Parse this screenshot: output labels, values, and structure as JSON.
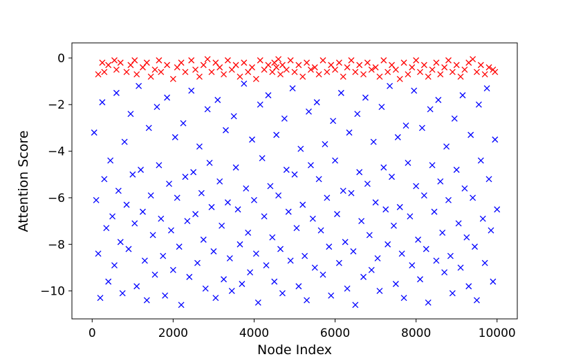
{
  "chart_data": {
    "type": "scatter",
    "marker": "x",
    "xlabel": "Node Index",
    "ylabel": "Attention Score",
    "xlim": [
      -500,
      10500
    ],
    "ylim": [
      -11.2,
      0.65
    ],
    "xticks": [
      0,
      2000,
      4000,
      6000,
      8000,
      10000
    ],
    "xtick_labels": [
      "0",
      "2000",
      "4000",
      "6000",
      "8000",
      "10000"
    ],
    "yticks": [
      0,
      -2,
      -4,
      -6,
      -8,
      -10
    ],
    "ytick_labels": [
      "0",
      "−2",
      "−4",
      "−6",
      "−8",
      "−10"
    ],
    "grid": false,
    "legend": "none",
    "series": [
      {
        "color": "#ff0000",
        "description_range": {
          "x": [
            0,
            10000
          ],
          "y": [
            -1.0,
            0.0
          ]
        },
        "points": [
          [
            150,
            -0.7
          ],
          [
            250,
            -0.2
          ],
          [
            300,
            -0.6
          ],
          [
            400,
            -0.3
          ],
          [
            550,
            -0.1
          ],
          [
            600,
            -0.5
          ],
          [
            700,
            -0.2
          ],
          [
            850,
            -0.6
          ],
          [
            950,
            -0.3
          ],
          [
            1050,
            -0.1
          ],
          [
            1100,
            -0.7
          ],
          [
            1250,
            -0.4
          ],
          [
            1350,
            -0.2
          ],
          [
            1450,
            -0.8
          ],
          [
            1550,
            -0.5
          ],
          [
            1650,
            -0.1
          ],
          [
            1700,
            -0.6
          ],
          [
            1850,
            -0.3
          ],
          [
            2000,
            -0.9
          ],
          [
            2100,
            -0.4
          ],
          [
            2200,
            -0.2
          ],
          [
            2300,
            -0.6
          ],
          [
            2450,
            -0.1
          ],
          [
            2550,
            -0.5
          ],
          [
            2650,
            -0.8
          ],
          [
            2750,
            -0.3
          ],
          [
            2850,
            -0.05
          ],
          [
            2950,
            -0.6
          ],
          [
            3050,
            -0.2
          ],
          [
            3150,
            -0.4
          ],
          [
            3250,
            -0.7
          ],
          [
            3350,
            -0.1
          ],
          [
            3450,
            -0.5
          ],
          [
            3550,
            -0.3
          ],
          [
            3650,
            -0.8
          ],
          [
            3750,
            -0.2
          ],
          [
            3850,
            -0.6
          ],
          [
            3950,
            -0.4
          ],
          [
            4050,
            -0.9
          ],
          [
            4150,
            -0.1
          ],
          [
            4250,
            -0.5
          ],
          [
            4350,
            -0.3
          ],
          [
            4450,
            -0.6
          ],
          [
            4500,
            -0.2
          ],
          [
            4550,
            -0.4
          ],
          [
            4600,
            -0.05
          ],
          [
            4650,
            -0.7
          ],
          [
            4700,
            -0.3
          ],
          [
            4800,
            -0.5
          ],
          [
            4900,
            -0.1
          ],
          [
            5000,
            -0.6
          ],
          [
            5100,
            -0.3
          ],
          [
            5200,
            -0.8
          ],
          [
            5300,
            -0.2
          ],
          [
            5400,
            -0.5
          ],
          [
            5500,
            -0.4
          ],
          [
            5600,
            -0.7
          ],
          [
            5700,
            -0.1
          ],
          [
            5800,
            -0.6
          ],
          [
            5900,
            -0.3
          ],
          [
            6000,
            -0.5
          ],
          [
            6100,
            -0.2
          ],
          [
            6200,
            -0.8
          ],
          [
            6300,
            -0.4
          ],
          [
            6400,
            -0.1
          ],
          [
            6500,
            -0.6
          ],
          [
            6600,
            -0.3
          ],
          [
            6700,
            -0.7
          ],
          [
            6800,
            -0.2
          ],
          [
            6900,
            -0.5
          ],
          [
            7000,
            -0.4
          ],
          [
            7100,
            -0.8
          ],
          [
            7200,
            -0.1
          ],
          [
            7300,
            -0.6
          ],
          [
            7400,
            -0.3
          ],
          [
            7500,
            -0.5
          ],
          [
            7600,
            -0.9
          ],
          [
            7700,
            -0.2
          ],
          [
            7800,
            -0.7
          ],
          [
            7900,
            -0.4
          ],
          [
            8000,
            -0.1
          ],
          [
            8100,
            -0.6
          ],
          [
            8200,
            -0.3
          ],
          [
            8300,
            -0.8
          ],
          [
            8400,
            -0.5
          ],
          [
            8500,
            -0.2
          ],
          [
            8600,
            -0.7
          ],
          [
            8700,
            -0.4
          ],
          [
            8800,
            -0.1
          ],
          [
            8900,
            -0.6
          ],
          [
            9000,
            -0.3
          ],
          [
            9100,
            -0.8
          ],
          [
            9200,
            -0.5
          ],
          [
            9300,
            -0.2
          ],
          [
            9400,
            -0.05
          ],
          [
            9500,
            -0.6
          ],
          [
            9600,
            -0.3
          ],
          [
            9700,
            -0.7
          ],
          [
            9800,
            -0.4
          ],
          [
            9900,
            -0.5
          ],
          [
            9950,
            -0.6
          ]
        ]
      },
      {
        "color": "#0000ff",
        "description_range": {
          "x": [
            0,
            10000
          ],
          "y": [
            -10.7,
            -1.0
          ]
        },
        "points": [
          [
            50,
            -3.2
          ],
          [
            100,
            -6.1
          ],
          [
            150,
            -8.4
          ],
          [
            200,
            -10.3
          ],
          [
            250,
            -1.9
          ],
          [
            300,
            -5.2
          ],
          [
            350,
            -7.3
          ],
          [
            400,
            -9.6
          ],
          [
            450,
            -4.4
          ],
          [
            500,
            -6.8
          ],
          [
            550,
            -8.9
          ],
          [
            600,
            -1.5
          ],
          [
            650,
            -5.7
          ],
          [
            700,
            -7.9
          ],
          [
            750,
            -10.1
          ],
          [
            800,
            -3.6
          ],
          [
            850,
            -6.3
          ],
          [
            900,
            -8.2
          ],
          [
            950,
            -2.4
          ],
          [
            1000,
            -5.0
          ],
          [
            1050,
            -7.1
          ],
          [
            1100,
            -9.8
          ],
          [
            1150,
            -1.2
          ],
          [
            1200,
            -4.8
          ],
          [
            1250,
            -6.6
          ],
          [
            1300,
            -8.7
          ],
          [
            1350,
            -10.4
          ],
          [
            1400,
            -3.0
          ],
          [
            1450,
            -5.9
          ],
          [
            1500,
            -7.6
          ],
          [
            1550,
            -9.3
          ],
          [
            1600,
            -2.1
          ],
          [
            1650,
            -4.6
          ],
          [
            1700,
            -6.9
          ],
          [
            1750,
            -8.5
          ],
          [
            1800,
            -10.2
          ],
          [
            1850,
            -1.7
          ],
          [
            1900,
            -5.4
          ],
          [
            1950,
            -7.4
          ],
          [
            2000,
            -9.1
          ],
          [
            2050,
            -3.4
          ],
          [
            2100,
            -6.0
          ],
          [
            2150,
            -8.1
          ],
          [
            2200,
            -10.6
          ],
          [
            2250,
            -2.8
          ],
          [
            2300,
            -5.1
          ],
          [
            2350,
            -7.0
          ],
          [
            2400,
            -9.4
          ],
          [
            2450,
            -1.4
          ],
          [
            2500,
            -4.9
          ],
          [
            2550,
            -6.7
          ],
          [
            2600,
            -8.8
          ],
          [
            2650,
            -3.8
          ],
          [
            2700,
            -5.8
          ],
          [
            2750,
            -7.8
          ],
          [
            2800,
            -9.9
          ],
          [
            2850,
            -2.2
          ],
          [
            2900,
            -4.5
          ],
          [
            2950,
            -6.4
          ],
          [
            3000,
            -8.3
          ],
          [
            3050,
            -10.3
          ],
          [
            3100,
            -1.8
          ],
          [
            3150,
            -5.3
          ],
          [
            3200,
            -7.2
          ],
          [
            3250,
            -9.5
          ],
          [
            3300,
            -3.1
          ],
          [
            3350,
            -6.2
          ],
          [
            3400,
            -8.6
          ],
          [
            3450,
            -10.0
          ],
          [
            3500,
            -2.5
          ],
          [
            3550,
            -4.7
          ],
          [
            3600,
            -6.5
          ],
          [
            3650,
            -8.0
          ],
          [
            3700,
            -9.7
          ],
          [
            3750,
            -1.1
          ],
          [
            3800,
            -5.6
          ],
          [
            3850,
            -7.5
          ],
          [
            3900,
            -9.2
          ],
          [
            3950,
            -3.5
          ],
          [
            4000,
            -6.1
          ],
          [
            4050,
            -8.4
          ],
          [
            4100,
            -10.5
          ],
          [
            4150,
            -2.0
          ],
          [
            4200,
            -4.3
          ],
          [
            4250,
            -6.8
          ],
          [
            4300,
            -8.9
          ],
          [
            4350,
            -1.6
          ],
          [
            4400,
            -5.5
          ],
          [
            4450,
            -7.7
          ],
          [
            4500,
            -9.6
          ],
          [
            4550,
            -3.3
          ],
          [
            4600,
            -5.9
          ],
          [
            4650,
            -8.2
          ],
          [
            4700,
            -10.1
          ],
          [
            4750,
            -2.6
          ],
          [
            4800,
            -4.8
          ],
          [
            4850,
            -6.6
          ],
          [
            4900,
            -8.7
          ],
          [
            4950,
            -1.3
          ],
          [
            5000,
            -5.0
          ],
          [
            5050,
            -7.3
          ],
          [
            5100,
            -9.8
          ],
          [
            5150,
            -3.9
          ],
          [
            5200,
            -6.3
          ],
          [
            5250,
            -8.5
          ],
          [
            5300,
            -10.4
          ],
          [
            5350,
            -2.3
          ],
          [
            5400,
            -4.6
          ],
          [
            5450,
            -6.9
          ],
          [
            5500,
            -9.0
          ],
          [
            5550,
            -1.9
          ],
          [
            5600,
            -5.2
          ],
          [
            5650,
            -7.4
          ],
          [
            5700,
            -9.3
          ],
          [
            5750,
            -3.7
          ],
          [
            5800,
            -6.0
          ],
          [
            5850,
            -8.1
          ],
          [
            5900,
            -10.2
          ],
          [
            5950,
            -2.7
          ],
          [
            6000,
            -4.4
          ],
          [
            6050,
            -6.7
          ],
          [
            6100,
            -8.8
          ],
          [
            6150,
            -1.5
          ],
          [
            6200,
            -5.7
          ],
          [
            6250,
            -7.9
          ],
          [
            6300,
            -9.9
          ],
          [
            6350,
            -3.2
          ],
          [
            6400,
            -5.8
          ],
          [
            6450,
            -8.3
          ],
          [
            6500,
            -10.6
          ],
          [
            6550,
            -2.4
          ],
          [
            6600,
            -4.9
          ],
          [
            6650,
            -7.0
          ],
          [
            6700,
            -9.4
          ],
          [
            6750,
            -1.7
          ],
          [
            6800,
            -5.4
          ],
          [
            6850,
            -7.6
          ],
          [
            6900,
            -9.1
          ],
          [
            6950,
            -3.6
          ],
          [
            7000,
            -6.2
          ],
          [
            7050,
            -8.6
          ],
          [
            7100,
            -10.0
          ],
          [
            7150,
            -2.1
          ],
          [
            7200,
            -4.7
          ],
          [
            7250,
            -6.5
          ],
          [
            7300,
            -8.0
          ],
          [
            7350,
            -1.2
          ],
          [
            7400,
            -5.1
          ],
          [
            7450,
            -7.2
          ],
          [
            7500,
            -9.7
          ],
          [
            7550,
            -3.4
          ],
          [
            7600,
            -6.4
          ],
          [
            7650,
            -8.4
          ],
          [
            7700,
            -10.3
          ],
          [
            7750,
            -2.9
          ],
          [
            7800,
            -4.5
          ],
          [
            7850,
            -6.8
          ],
          [
            7900,
            -8.9
          ],
          [
            7950,
            -1.4
          ],
          [
            8000,
            -5.5
          ],
          [
            8050,
            -7.8
          ],
          [
            8100,
            -9.5
          ],
          [
            8150,
            -3.0
          ],
          [
            8200,
            -5.9
          ],
          [
            8250,
            -8.2
          ],
          [
            8300,
            -10.5
          ],
          [
            8350,
            -2.2
          ],
          [
            8400,
            -4.6
          ],
          [
            8450,
            -6.6
          ],
          [
            8500,
            -8.7
          ],
          [
            8550,
            -1.8
          ],
          [
            8600,
            -5.3
          ],
          [
            8650,
            -7.5
          ],
          [
            8700,
            -9.2
          ],
          [
            8750,
            -3.8
          ],
          [
            8800,
            -6.1
          ],
          [
            8850,
            -8.5
          ],
          [
            8900,
            -10.1
          ],
          [
            8950,
            -2.6
          ],
          [
            9000,
            -4.8
          ],
          [
            9050,
            -7.1
          ],
          [
            9100,
            -9.0
          ],
          [
            9150,
            -1.6
          ],
          [
            9200,
            -5.6
          ],
          [
            9250,
            -7.7
          ],
          [
            9300,
            -9.8
          ],
          [
            9350,
            -3.3
          ],
          [
            9400,
            -6.0
          ],
          [
            9450,
            -8.1
          ],
          [
            9500,
            -10.4
          ],
          [
            9550,
            -2.0
          ],
          [
            9600,
            -4.4
          ],
          [
            9650,
            -6.9
          ],
          [
            9700,
            -8.8
          ],
          [
            9750,
            -1.3
          ],
          [
            9800,
            -5.2
          ],
          [
            9850,
            -7.4
          ],
          [
            9900,
            -9.6
          ],
          [
            9950,
            -3.5
          ],
          [
            10000,
            -6.5
          ]
        ]
      }
    ]
  }
}
